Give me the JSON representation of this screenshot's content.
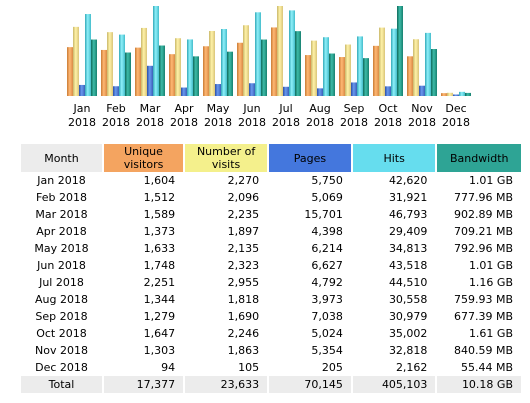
{
  "colors": {
    "unique": "#f4a460",
    "visits": "#f4f08c",
    "pages": "#4477dd",
    "hits": "#66ddee",
    "bandwidth": "#2ea495"
  },
  "chart_data": {
    "type": "bar",
    "categories": [
      "Jan 2018",
      "Feb 2018",
      "Mar 2018",
      "Apr 2018",
      "May 2018",
      "Jun 2018",
      "Jul 2018",
      "Aug 2018",
      "Sep 2018",
      "Oct 2018",
      "Nov 2018",
      "Dec 2018"
    ],
    "series": [
      {
        "name": "Unique visitors",
        "color": "#f4a460",
        "values": [
          1604,
          1512,
          1589,
          1373,
          1633,
          1748,
          2251,
          1344,
          1279,
          1647,
          1303,
          94
        ]
      },
      {
        "name": "Number of visits",
        "color": "#f4f08c",
        "values": [
          2270,
          2096,
          2235,
          1897,
          2135,
          2323,
          2955,
          1818,
          1690,
          2246,
          1863,
          105
        ]
      },
      {
        "name": "Pages",
        "color": "#4477dd",
        "values": [
          5750,
          5069,
          15701,
          4398,
          6214,
          6627,
          4792,
          3973,
          7038,
          5024,
          5354,
          205
        ]
      },
      {
        "name": "Hits",
        "color": "#66ddee",
        "values": [
          42620,
          31921,
          46793,
          29409,
          34813,
          43518,
          44510,
          30558,
          30979,
          35002,
          32818,
          2162
        ]
      },
      {
        "name": "Bandwidth",
        "color": "#2ea495",
        "values": [
          1.01,
          0.7779,
          0.9029,
          0.7092,
          0.793,
          1.01,
          1.16,
          0.7599,
          0.6774,
          1.61,
          0.8406,
          0.0554
        ]
      }
    ],
    "x_labels": [
      [
        "Jan",
        "2018"
      ],
      [
        "Feb",
        "2018"
      ],
      [
        "Mar",
        "2018"
      ],
      [
        "Apr",
        "2018"
      ],
      [
        "May",
        "2018"
      ],
      [
        "Jun",
        "2018"
      ],
      [
        "Jul",
        "2018"
      ],
      [
        "Aug",
        "2018"
      ],
      [
        "Sep",
        "2018"
      ],
      [
        "Oct",
        "2018"
      ],
      [
        "Nov",
        "2018"
      ],
      [
        "Dec",
        "2018"
      ]
    ]
  },
  "table": {
    "headers": {
      "month": "Month",
      "unique": [
        "Unique",
        "visitors"
      ],
      "visits": [
        "Number of",
        "visits"
      ],
      "pages": "Pages",
      "hits": "Hits",
      "bandwidth": "Bandwidth"
    },
    "rows": [
      {
        "month": "Jan 2018",
        "unique": "1,604",
        "visits": "2,270",
        "pages": "5,750",
        "hits": "42,620",
        "bandwidth": "1.01 GB"
      },
      {
        "month": "Feb 2018",
        "unique": "1,512",
        "visits": "2,096",
        "pages": "5,069",
        "hits": "31,921",
        "bandwidth": "777.96 MB"
      },
      {
        "month": "Mar 2018",
        "unique": "1,589",
        "visits": "2,235",
        "pages": "15,701",
        "hits": "46,793",
        "bandwidth": "902.89 MB"
      },
      {
        "month": "Apr 2018",
        "unique": "1,373",
        "visits": "1,897",
        "pages": "4,398",
        "hits": "29,409",
        "bandwidth": "709.21 MB"
      },
      {
        "month": "May 2018",
        "unique": "1,633",
        "visits": "2,135",
        "pages": "6,214",
        "hits": "34,813",
        "bandwidth": "792.96 MB"
      },
      {
        "month": "Jun 2018",
        "unique": "1,748",
        "visits": "2,323",
        "pages": "6,627",
        "hits": "43,518",
        "bandwidth": "1.01 GB"
      },
      {
        "month": "Jul 2018",
        "unique": "2,251",
        "visits": "2,955",
        "pages": "4,792",
        "hits": "44,510",
        "bandwidth": "1.16 GB"
      },
      {
        "month": "Aug 2018",
        "unique": "1,344",
        "visits": "1,818",
        "pages": "3,973",
        "hits": "30,558",
        "bandwidth": "759.93 MB"
      },
      {
        "month": "Sep 2018",
        "unique": "1,279",
        "visits": "1,690",
        "pages": "7,038",
        "hits": "30,979",
        "bandwidth": "677.39 MB"
      },
      {
        "month": "Oct 2018",
        "unique": "1,647",
        "visits": "2,246",
        "pages": "5,024",
        "hits": "35,002",
        "bandwidth": "1.61 GB"
      },
      {
        "month": "Nov 2018",
        "unique": "1,303",
        "visits": "1,863",
        "pages": "5,354",
        "hits": "32,818",
        "bandwidth": "840.59 MB"
      },
      {
        "month": "Dec 2018",
        "unique": "94",
        "visits": "105",
        "pages": "205",
        "hits": "2,162",
        "bandwidth": "55.44 MB"
      }
    ],
    "total": {
      "month": "Total",
      "unique": "17,377",
      "visits": "23,633",
      "pages": "70,145",
      "hits": "405,103",
      "bandwidth": "10.18 GB"
    }
  }
}
